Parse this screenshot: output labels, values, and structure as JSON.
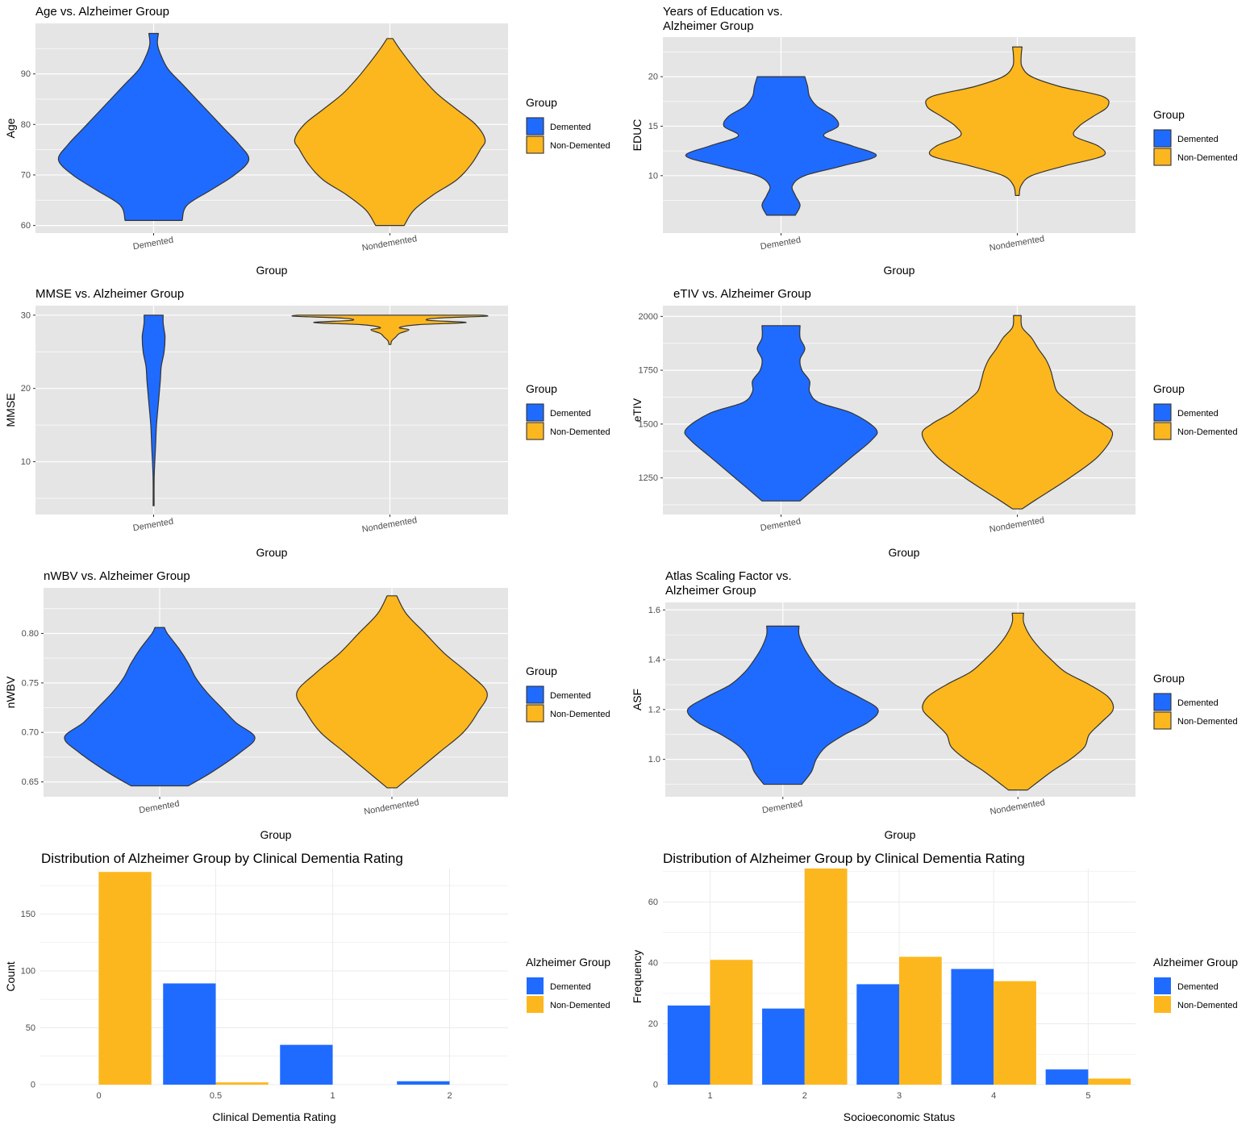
{
  "colors": {
    "demented": "#1F6BFF",
    "non_demented": "#FDB71E",
    "panel_bg": "#E5E5E5",
    "grid": "#FFFFFF",
    "outline": "#333333"
  },
  "chart_data": [
    {
      "type": "violin",
      "title": "Age vs. Alzheimer Group",
      "xlabel": "Group",
      "ylabel": "Age",
      "categories": [
        "Demented",
        "Nondemented"
      ],
      "ylim": [
        58.5,
        100
      ],
      "yticks": [
        60,
        70,
        80,
        90
      ],
      "legend": {
        "title": "Group",
        "position": "right",
        "entries": [
          "Demented",
          "Non-Demented"
        ]
      },
      "grid": true,
      "series": [
        {
          "name": "Demented",
          "profile": [
            [
              61,
              0.3
            ],
            [
              64,
              0.35
            ],
            [
              67,
              0.6
            ],
            [
              70,
              0.85
            ],
            [
              73,
              1.0
            ],
            [
              76,
              0.9
            ],
            [
              79,
              0.75
            ],
            [
              82,
              0.6
            ],
            [
              85,
              0.45
            ],
            [
              88,
              0.3
            ],
            [
              91,
              0.15
            ],
            [
              94,
              0.07
            ],
            [
              96,
              0.04
            ],
            [
              98,
              0.05
            ]
          ]
        },
        {
          "name": "Nondemented",
          "profile": [
            [
              60,
              0.15
            ],
            [
              63,
              0.25
            ],
            [
              66,
              0.45
            ],
            [
              69,
              0.7
            ],
            [
              72,
              0.85
            ],
            [
              75,
              0.95
            ],
            [
              77,
              1.0
            ],
            [
              80,
              0.9
            ],
            [
              83,
              0.7
            ],
            [
              86,
              0.5
            ],
            [
              89,
              0.35
            ],
            [
              92,
              0.22
            ],
            [
              95,
              0.1
            ],
            [
              97,
              0.03
            ]
          ]
        }
      ]
    },
    {
      "type": "violin",
      "title": "Years of Education vs.\nAlzheimer Group",
      "xlabel": "Group",
      "ylabel": "EDUC",
      "categories": [
        "Demented",
        "Nondemented"
      ],
      "ylim": [
        4.2,
        24
      ],
      "yticks": [
        10,
        15,
        20
      ],
      "legend": {
        "title": "Group",
        "position": "right",
        "entries": [
          "Demented",
          "Non-Demented"
        ]
      },
      "grid": true,
      "series": [
        {
          "name": "Demented",
          "profile": [
            [
              6,
              0.15
            ],
            [
              7,
              0.2
            ],
            [
              8,
              0.15
            ],
            [
              9,
              0.12
            ],
            [
              10,
              0.25
            ],
            [
              11,
              0.65
            ],
            [
              12,
              1.0
            ],
            [
              13,
              0.75
            ],
            [
              14,
              0.45
            ],
            [
              15,
              0.6
            ],
            [
              16,
              0.55
            ],
            [
              17,
              0.38
            ],
            [
              18,
              0.3
            ],
            [
              19,
              0.28
            ],
            [
              20,
              0.25
            ]
          ]
        },
        {
          "name": "Nondemented",
          "profile": [
            [
              8,
              0.02
            ],
            [
              9,
              0.04
            ],
            [
              10,
              0.15
            ],
            [
              11,
              0.5
            ],
            [
              12,
              0.9
            ],
            [
              13,
              0.85
            ],
            [
              14,
              0.6
            ],
            [
              15,
              0.65
            ],
            [
              16,
              0.8
            ],
            [
              17,
              0.95
            ],
            [
              18,
              0.9
            ],
            [
              19,
              0.45
            ],
            [
              20,
              0.15
            ],
            [
              21,
              0.05
            ],
            [
              22,
              0.04
            ],
            [
              23,
              0.05
            ]
          ]
        }
      ]
    },
    {
      "type": "violin",
      "title": "MMSE vs. Alzheimer Group",
      "xlabel": "Group",
      "ylabel": "MMSE",
      "categories": [
        "Demented",
        "Nondemented"
      ],
      "ylim": [
        2.8,
        31.3
      ],
      "yticks": [
        10,
        20,
        30
      ],
      "legend": {
        "title": "Group",
        "position": "right",
        "entries": [
          "Demented",
          "Non-Demented"
        ]
      },
      "grid": true,
      "series": [
        {
          "name": "Demented",
          "profile": [
            [
              4,
              0.005
            ],
            [
              8,
              0.006
            ],
            [
              12,
              0.02
            ],
            [
              15,
              0.03
            ],
            [
              18,
              0.05
            ],
            [
              21,
              0.07
            ],
            [
              23,
              0.08
            ],
            [
              25,
              0.11
            ],
            [
              27,
              0.12
            ],
            [
              28,
              0.11
            ],
            [
              29,
              0.1
            ],
            [
              30,
              0.1
            ]
          ]
        },
        {
          "name": "Nondemented",
          "profile": [
            [
              26,
              0.01
            ],
            [
              26.5,
              0.02
            ],
            [
              27,
              0.06
            ],
            [
              27.5,
              0.1
            ],
            [
              28,
              0.2
            ],
            [
              28.3,
              0.1
            ],
            [
              28.7,
              0.3
            ],
            [
              29,
              0.8
            ],
            [
              29.3,
              0.4
            ],
            [
              29.6,
              0.5
            ],
            [
              29.85,
              1.0
            ],
            [
              30,
              0.97
            ]
          ]
        }
      ]
    },
    {
      "type": "violin",
      "title": "eTIV vs. Alzheimer Group",
      "xlabel": "Group",
      "ylabel": "eTIV",
      "categories": [
        "Demented",
        "Nondemented"
      ],
      "ylim": [
        1080,
        2050
      ],
      "yticks": [
        1250,
        1500,
        1750,
        2000
      ],
      "legend": {
        "title": "Group",
        "position": "right",
        "entries": [
          "Demented",
          "Non-Demented"
        ]
      },
      "grid": true,
      "series": [
        {
          "name": "Demented",
          "profile": [
            [
              1143,
              0.2
            ],
            [
              1200,
              0.35
            ],
            [
              1275,
              0.55
            ],
            [
              1350,
              0.75
            ],
            [
              1425,
              0.95
            ],
            [
              1475,
              1.0
            ],
            [
              1550,
              0.75
            ],
            [
              1600,
              0.4
            ],
            [
              1650,
              0.3
            ],
            [
              1700,
              0.3
            ],
            [
              1750,
              0.22
            ],
            [
              1800,
              0.2
            ],
            [
              1850,
              0.25
            ],
            [
              1900,
              0.2
            ],
            [
              1957,
              0.2
            ]
          ]
        },
        {
          "name": "Nondemented",
          "profile": [
            [
              1106,
              0.05
            ],
            [
              1150,
              0.2
            ],
            [
              1250,
              0.55
            ],
            [
              1350,
              0.85
            ],
            [
              1450,
              1.0
            ],
            [
              1500,
              0.9
            ],
            [
              1550,
              0.7
            ],
            [
              1600,
              0.55
            ],
            [
              1650,
              0.42
            ],
            [
              1700,
              0.38
            ],
            [
              1750,
              0.35
            ],
            [
              1800,
              0.3
            ],
            [
              1850,
              0.22
            ],
            [
              1900,
              0.15
            ],
            [
              1950,
              0.05
            ],
            [
              2004,
              0.04
            ]
          ]
        }
      ]
    },
    {
      "type": "violin",
      "title": "nWBV vs. Alzheimer Group",
      "xlabel": "Group",
      "ylabel": "nWBV",
      "categories": [
        "Demented",
        "Nondemented"
      ],
      "ylim": [
        0.635,
        0.846
      ],
      "yticks": [
        0.65,
        0.7,
        0.75,
        0.8
      ],
      "legend": {
        "title": "Group",
        "position": "right",
        "entries": [
          "Demented",
          "Non-Demented"
        ]
      },
      "grid": true,
      "series": [
        {
          "name": "Demented",
          "profile": [
            [
              0.646,
              0.3
            ],
            [
              0.66,
              0.55
            ],
            [
              0.68,
              0.85
            ],
            [
              0.695,
              1.0
            ],
            [
              0.71,
              0.8
            ],
            [
              0.725,
              0.65
            ],
            [
              0.74,
              0.5
            ],
            [
              0.755,
              0.38
            ],
            [
              0.77,
              0.3
            ],
            [
              0.785,
              0.2
            ],
            [
              0.8,
              0.08
            ],
            [
              0.806,
              0.05
            ]
          ]
        },
        {
          "name": "Nondemented",
          "profile": [
            [
              0.644,
              0.05
            ],
            [
              0.66,
              0.25
            ],
            [
              0.68,
              0.5
            ],
            [
              0.7,
              0.75
            ],
            [
              0.72,
              0.9
            ],
            [
              0.74,
              1.0
            ],
            [
              0.76,
              0.8
            ],
            [
              0.78,
              0.55
            ],
            [
              0.8,
              0.35
            ],
            [
              0.82,
              0.15
            ],
            [
              0.838,
              0.05
            ]
          ]
        }
      ]
    },
    {
      "type": "violin",
      "title": "Atlas Scaling Factor vs.\nAlzheimer Group",
      "xlabel": "Group",
      "ylabel": "ASF",
      "categories": [
        "Demented",
        "Nondemented"
      ],
      "ylim": [
        0.85,
        1.63
      ],
      "yticks": [
        1.0,
        1.2,
        1.4,
        1.6
      ],
      "legend": {
        "title": "Group",
        "position": "right",
        "entries": [
          "Demented",
          "Non-Demented"
        ]
      },
      "grid": true,
      "series": [
        {
          "name": "Demented",
          "profile": [
            [
              0.9,
              0.2
            ],
            [
              0.95,
              0.3
            ],
            [
              1.0,
              0.35
            ],
            [
              1.05,
              0.45
            ],
            [
              1.1,
              0.65
            ],
            [
              1.15,
              0.9
            ],
            [
              1.2,
              1.0
            ],
            [
              1.25,
              0.8
            ],
            [
              1.3,
              0.55
            ],
            [
              1.35,
              0.4
            ],
            [
              1.4,
              0.3
            ],
            [
              1.45,
              0.22
            ],
            [
              1.5,
              0.17
            ],
            [
              1.535,
              0.17
            ]
          ]
        },
        {
          "name": "Nondemented",
          "profile": [
            [
              0.877,
              0.1
            ],
            [
              0.95,
              0.35
            ],
            [
              1.0,
              0.55
            ],
            [
              1.05,
              0.7
            ],
            [
              1.1,
              0.75
            ],
            [
              1.15,
              0.88
            ],
            [
              1.2,
              1.0
            ],
            [
              1.25,
              0.95
            ],
            [
              1.3,
              0.75
            ],
            [
              1.35,
              0.5
            ],
            [
              1.4,
              0.35
            ],
            [
              1.45,
              0.22
            ],
            [
              1.5,
              0.12
            ],
            [
              1.55,
              0.06
            ],
            [
              1.587,
              0.06
            ]
          ]
        }
      ]
    },
    {
      "type": "bar",
      "title": "Distribution of Alzheimer Group by Clinical Dementia Rating",
      "xlabel": "Clinical Dementia Rating",
      "ylabel": "Count",
      "categories": [
        "0",
        "0.5",
        "1",
        "2"
      ],
      "ylim": [
        0,
        190
      ],
      "yticks": [
        0,
        50,
        100,
        150
      ],
      "legend": {
        "title": "Alzheimer Group",
        "position": "right",
        "entries": [
          "Demented",
          "Non-Demented"
        ]
      },
      "grid": true,
      "series": [
        {
          "name": "Demented",
          "values": [
            0,
            89,
            35,
            3
          ]
        },
        {
          "name": "Non-Demented",
          "values": [
            187,
            2,
            0,
            0
          ]
        }
      ]
    },
    {
      "type": "bar",
      "title": "Distribution of Alzheimer Group by Clinical Dementia Rating",
      "xlabel": "Socioeconomic Status",
      "ylabel": "Frequency",
      "categories": [
        "1",
        "2",
        "3",
        "4",
        "5"
      ],
      "ylim": [
        0,
        71
      ],
      "yticks": [
        0,
        20,
        40,
        60
      ],
      "legend": {
        "title": "Alzheimer Group",
        "position": "right",
        "entries": [
          "Demented",
          "Non-Demented"
        ]
      },
      "grid": true,
      "series": [
        {
          "name": "Demented",
          "values": [
            26,
            25,
            33,
            38,
            5
          ]
        },
        {
          "name": "Non-Demented",
          "values": [
            41,
            71,
            42,
            34,
            2
          ]
        }
      ]
    }
  ]
}
